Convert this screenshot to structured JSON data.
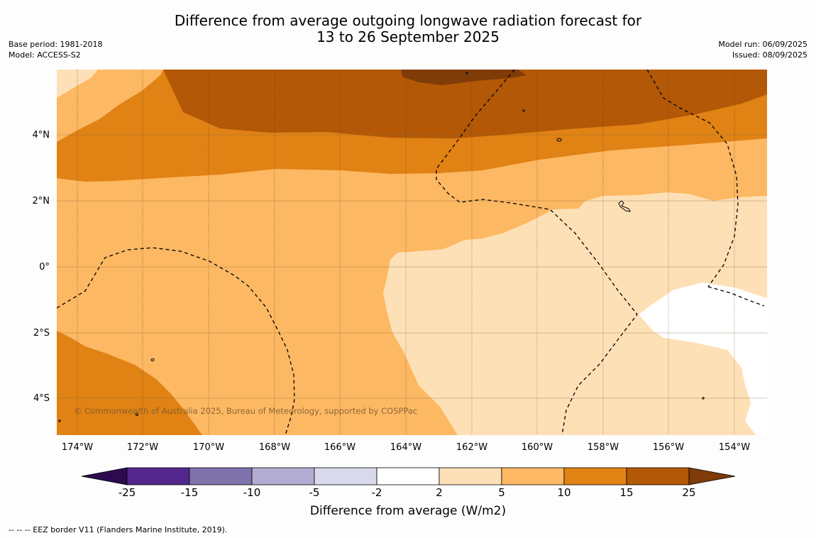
{
  "title": {
    "line1": "Difference from average outgoing longwave radiation forecast for",
    "line2": "13 to 26 September 2025"
  },
  "meta_left": {
    "base_period": "Base period: 1981-2018",
    "model": "Model: ACCESS-S2"
  },
  "meta_right": {
    "model_run": "Model run: 06/09/2025",
    "issued": "Issued: 08/09/2025"
  },
  "map": {
    "y_ticks": [
      "4°N",
      "2°N",
      "0°",
      "2°S",
      "4°S"
    ],
    "x_ticks": [
      "174°W",
      "172°W",
      "170°W",
      "168°W",
      "166°W",
      "164°W",
      "162°W",
      "160°W",
      "158°W",
      "156°W",
      "154°W"
    ],
    "copyright": "© Commonwealth of Australia 2025, Bureau of Meteorology, supported by COSPPac"
  },
  "colorbar": {
    "ticks": [
      "-25",
      "-15",
      "-10",
      "-5",
      "-2",
      "2",
      "5",
      "10",
      "15",
      "25"
    ],
    "colors": [
      "#2d0a4e",
      "#54278f",
      "#8073ac",
      "#b2abd2",
      "#d8daeb",
      "#ffffff",
      "#fee0b6",
      "#fdb863",
      "#e08214",
      "#b35806",
      "#7f3b08"
    ],
    "label": "Difference from average (W/m2)"
  },
  "footer": "--  --  -- EEZ border V11 (Flanders Marine Institute, 2019)."
}
